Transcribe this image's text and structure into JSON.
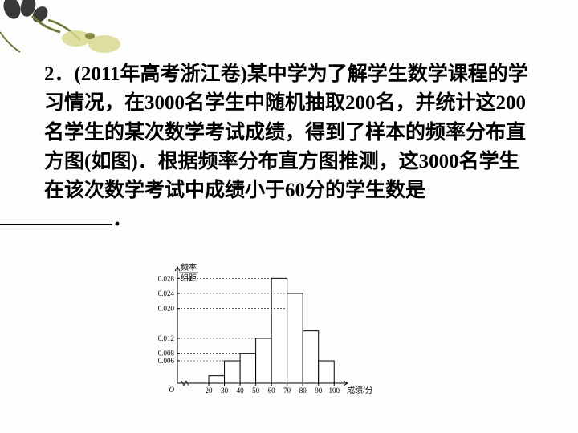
{
  "question": {
    "text": "2．(2011年高考浙江卷)某中学为了解学生数学课程的学习情况，在3000名学生中随机抽取200名，并统计这200名学生的某次数学考试成绩，得到了样本的频率分布直方图(如图)．根据频率分布直方图推测，这3000名学生在该次数学考试中成绩小于60分的学生数是"
  },
  "chart": {
    "ylabel_top": "频率",
    "ylabel_bottom": "组距",
    "xlabel": "成绩/分",
    "yticks": [
      "0.028",
      "0.024",
      "0.020",
      "0.012",
      "0.008",
      "0.006"
    ],
    "ytick_values": [
      0.028,
      0.024,
      0.02,
      0.012,
      0.008,
      0.006
    ],
    "xticks": [
      "0",
      "20",
      "30",
      "40",
      "50",
      "60",
      "70",
      "80",
      "90",
      "100"
    ],
    "xtick_values": [
      0,
      20,
      30,
      40,
      50,
      60,
      70,
      80,
      90,
      100
    ],
    "bars": [
      {
        "x0": 20,
        "x1": 30,
        "h": 0.002
      },
      {
        "x0": 30,
        "x1": 40,
        "h": 0.006
      },
      {
        "x0": 40,
        "x1": 50,
        "h": 0.008
      },
      {
        "x0": 50,
        "x1": 60,
        "h": 0.012
      },
      {
        "x0": 60,
        "x1": 70,
        "h": 0.028
      },
      {
        "x0": 70,
        "x1": 80,
        "h": 0.024
      },
      {
        "x0": 80,
        "x1": 90,
        "h": 0.014
      },
      {
        "x0": 90,
        "x1": 100,
        "h": 0.006
      }
    ],
    "ymax": 0.03,
    "xmin": 0,
    "xmax": 105,
    "axis_color": "#000000",
    "bar_fill": "#ffffff",
    "bar_stroke": "#000000"
  }
}
